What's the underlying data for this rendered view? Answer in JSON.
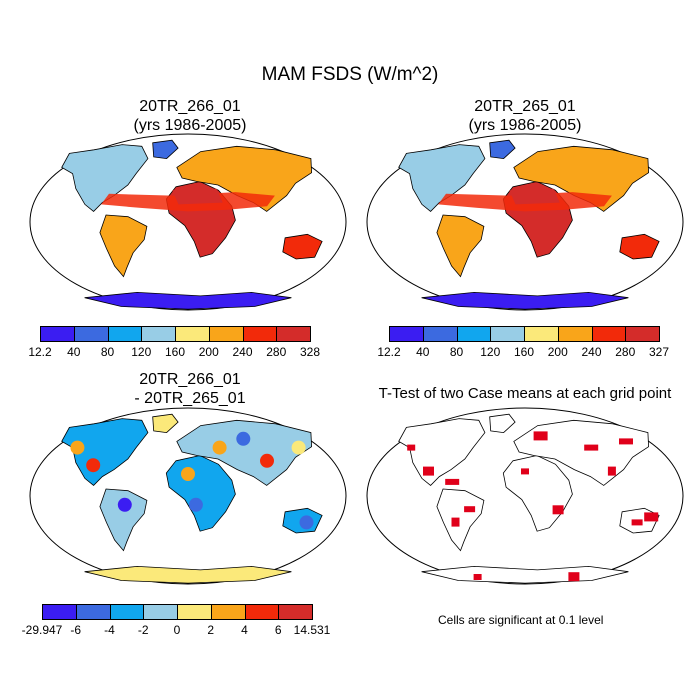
{
  "figure_title": "MAM FSDS (W/m^2)",
  "panels": [
    {
      "id": "p1",
      "title_line1": "20TR_266_01",
      "title_line2": "(yrs 1986-2005)"
    },
    {
      "id": "p2",
      "title_line1": "20TR_265_01",
      "title_line2": "(yrs 1986-2005)"
    },
    {
      "id": "p3",
      "title_line1": "20TR_266_01",
      "title_line2": "- 20TR_265_01"
    },
    {
      "id": "p4",
      "title_line1": "T-Test of two Case means at each grid point",
      "title_line2": ""
    }
  ],
  "significance_note": "Cells are significant at 0.1 level",
  "chart_data": [
    {
      "type": "heatmap",
      "title": "20TR_266_01 (yrs 1986-2005)",
      "variable": "FSDS",
      "units": "W/m^2",
      "season": "MAM",
      "projection": "Robinson",
      "colorbar": {
        "labels": [
          "12.2",
          "40",
          "80",
          "120",
          "160",
          "200",
          "240",
          "280",
          "328"
        ],
        "colors": [
          "#3b1df2",
          "#3c6ae0",
          "#11a6ee",
          "#98cde6",
          "#fbe97a",
          "#f9a51a",
          "#f22a0a",
          "#d42c2a"
        ]
      }
    },
    {
      "type": "heatmap",
      "title": "20TR_265_01 (yrs 1986-2005)",
      "variable": "FSDS",
      "units": "W/m^2",
      "season": "MAM",
      "projection": "Robinson",
      "colorbar": {
        "labels": [
          "12.2",
          "40",
          "80",
          "120",
          "160",
          "200",
          "240",
          "280",
          "327"
        ],
        "colors": [
          "#3b1df2",
          "#3c6ae0",
          "#11a6ee",
          "#98cde6",
          "#fbe97a",
          "#f9a51a",
          "#f22a0a",
          "#d42c2a"
        ]
      }
    },
    {
      "type": "heatmap",
      "title": "20TR_266_01 - 20TR_265_01",
      "variable": "FSDS difference",
      "units": "W/m^2",
      "projection": "Robinson",
      "colorbar": {
        "labels": [
          "-29.947",
          "-6",
          "-4",
          "-2",
          "0",
          "2",
          "4",
          "6",
          "14.531"
        ],
        "colors": [
          "#3b1df2",
          "#3c6ae0",
          "#11a6ee",
          "#98cde6",
          "#fbe97a",
          "#f9a51a",
          "#f22a0a",
          "#d42c2a"
        ]
      }
    },
    {
      "type": "heatmap",
      "title": "T-Test of two Case means at each grid point",
      "projection": "Robinson",
      "significance_level": 0.1,
      "significant_color": "#e0001a"
    }
  ]
}
